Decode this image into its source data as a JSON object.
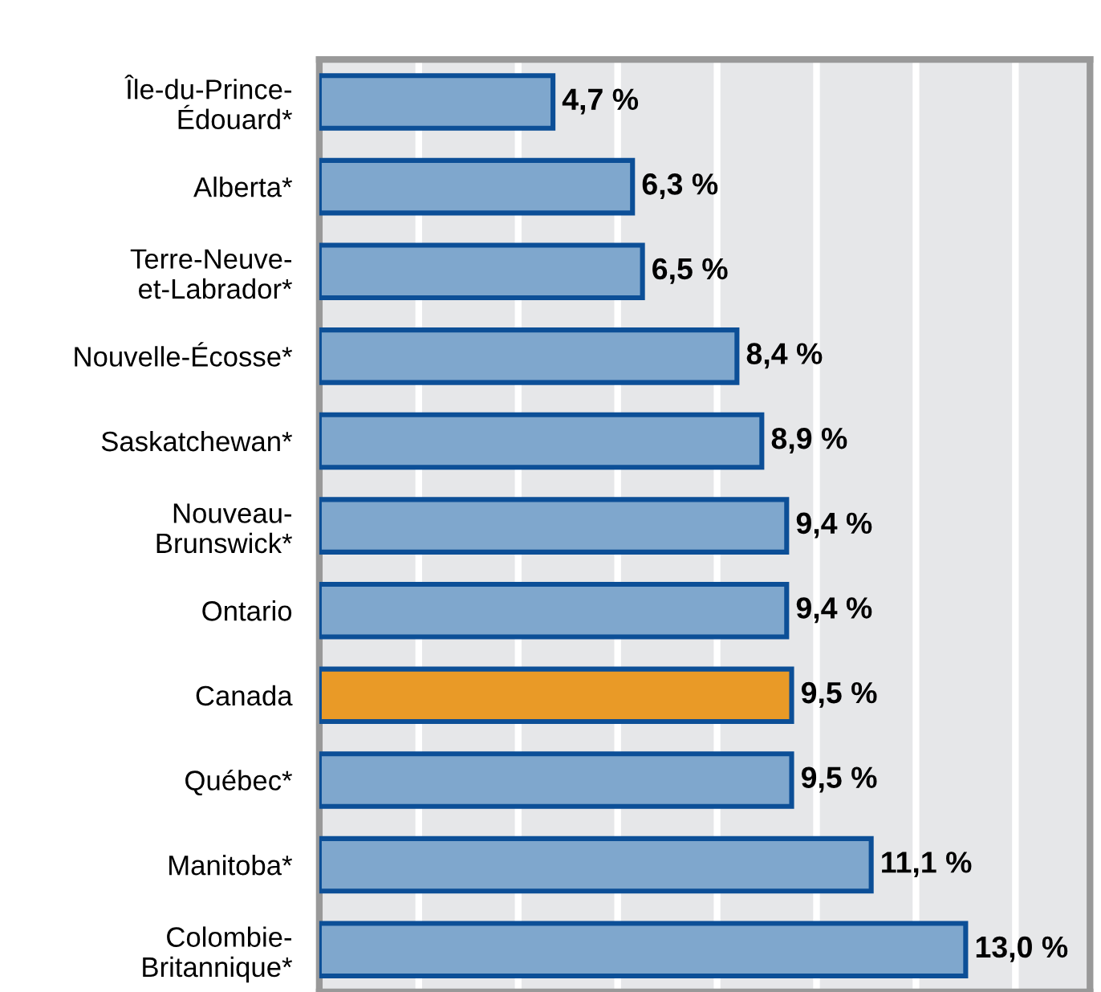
{
  "chart_data": {
    "type": "bar",
    "orientation": "horizontal",
    "categories": [
      "Île-du-Prince-\nÉdouard*",
      "Alberta*",
      "Terre-Neuve-\net-Labrador*",
      "Nouvelle-Écosse*",
      "Saskatchewan*",
      "Nouveau-\nBrunswick*",
      "Ontario",
      "Canada",
      "Québec*",
      "Manitoba*",
      "Colombie-\nBritannique*"
    ],
    "values": [
      4.7,
      6.3,
      6.5,
      8.4,
      8.9,
      9.4,
      9.4,
      9.5,
      9.5,
      11.1,
      13.0
    ],
    "colors": [
      "#7fa7cd",
      "#7fa7cd",
      "#7fa7cd",
      "#7fa7cd",
      "#7fa7cd",
      "#7fa7cd",
      "#7fa7cd",
      "#e99a27",
      "#7fa7cd",
      "#7fa7cd",
      "#7fa7cd"
    ],
    "value_labels": [
      "4,7 %",
      "6,3 %",
      "6,5 %",
      "8,4 %",
      "8,9 %",
      "9,4 %",
      "9,4 %",
      "9,5 %",
      "9,5 %",
      "11,1 %",
      "13,0 %"
    ],
    "xlim": [
      0,
      15.5
    ],
    "xticks": [
      {
        "value": 2,
        "label": null
      },
      {
        "value": 4,
        "label": null
      },
      {
        "value": 6,
        "label": null
      },
      {
        "value": 8,
        "label": null
      },
      {
        "value": 10,
        "label": null
      },
      {
        "value": 12,
        "label": null
      },
      {
        "value": 14,
        "label": null
      }
    ],
    "grid": "x",
    "tick_labels": "y"
  }
}
